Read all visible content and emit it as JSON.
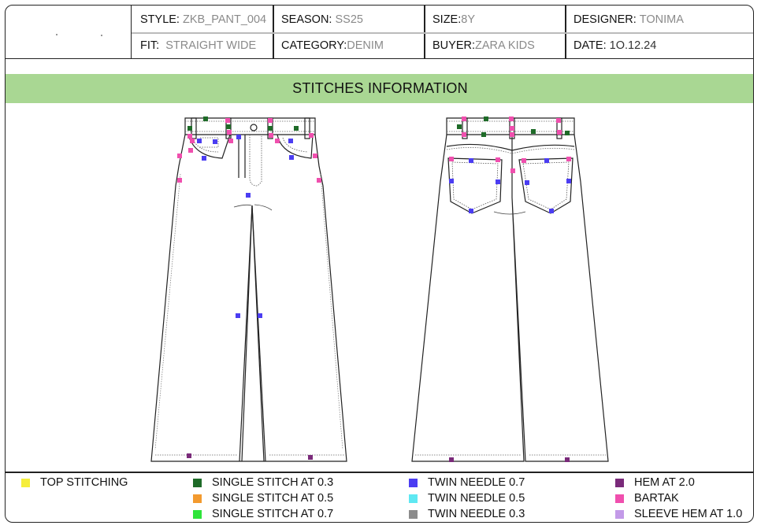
{
  "header": {
    "style_label": "STYLE:",
    "style_value": "ZKB_PANT_004",
    "season_label": "SEASON:",
    "season_value": "SS25",
    "size_label": "SIZE:",
    "size_value": "8Y",
    "designer_label": "DESIGNER:",
    "designer_value": "TONIMA",
    "fit_label": "FIT:",
    "fit_value": "STRAIGHT WIDE",
    "category_label": "CATEGORY:",
    "category_value": "DENIM",
    "buyer_label": "BUYER:",
    "buyer_value": "ZARA KIDS",
    "date_label": "DATE:",
    "date_value": "1O.12.24"
  },
  "section_title": "STITCHES INFORMATION",
  "legend": [
    {
      "label": "TOP STITCHING",
      "color": "#f5ee3b"
    },
    {
      "label": "SINGLE STITCH AT 0.3",
      "color": "#1e6b28"
    },
    {
      "label": "SINGLE STITCH AT 0.5",
      "color": "#f39a2f"
    },
    {
      "label": "SINGLE STITCH AT 0.7",
      "color": "#2ee43a"
    },
    {
      "label": "TWIN NEEDLE 0.7",
      "color": "#4b3df2"
    },
    {
      "label": "TWIN NEEDLE 0.5",
      "color": "#5ee8f2"
    },
    {
      "label": "TWIN NEEDLE 0.3",
      "color": "#8c8c8c"
    },
    {
      "label": "HEM AT 2.0",
      "color": "#7a2a7a"
    },
    {
      "label": "BARTAK",
      "color": "#f04fae"
    },
    {
      "label": "SLEEVE HEM AT 1.0",
      "color": "#c39ae8"
    }
  ],
  "colors": {
    "title_bar": "#a9d793",
    "outline": "#222222"
  }
}
